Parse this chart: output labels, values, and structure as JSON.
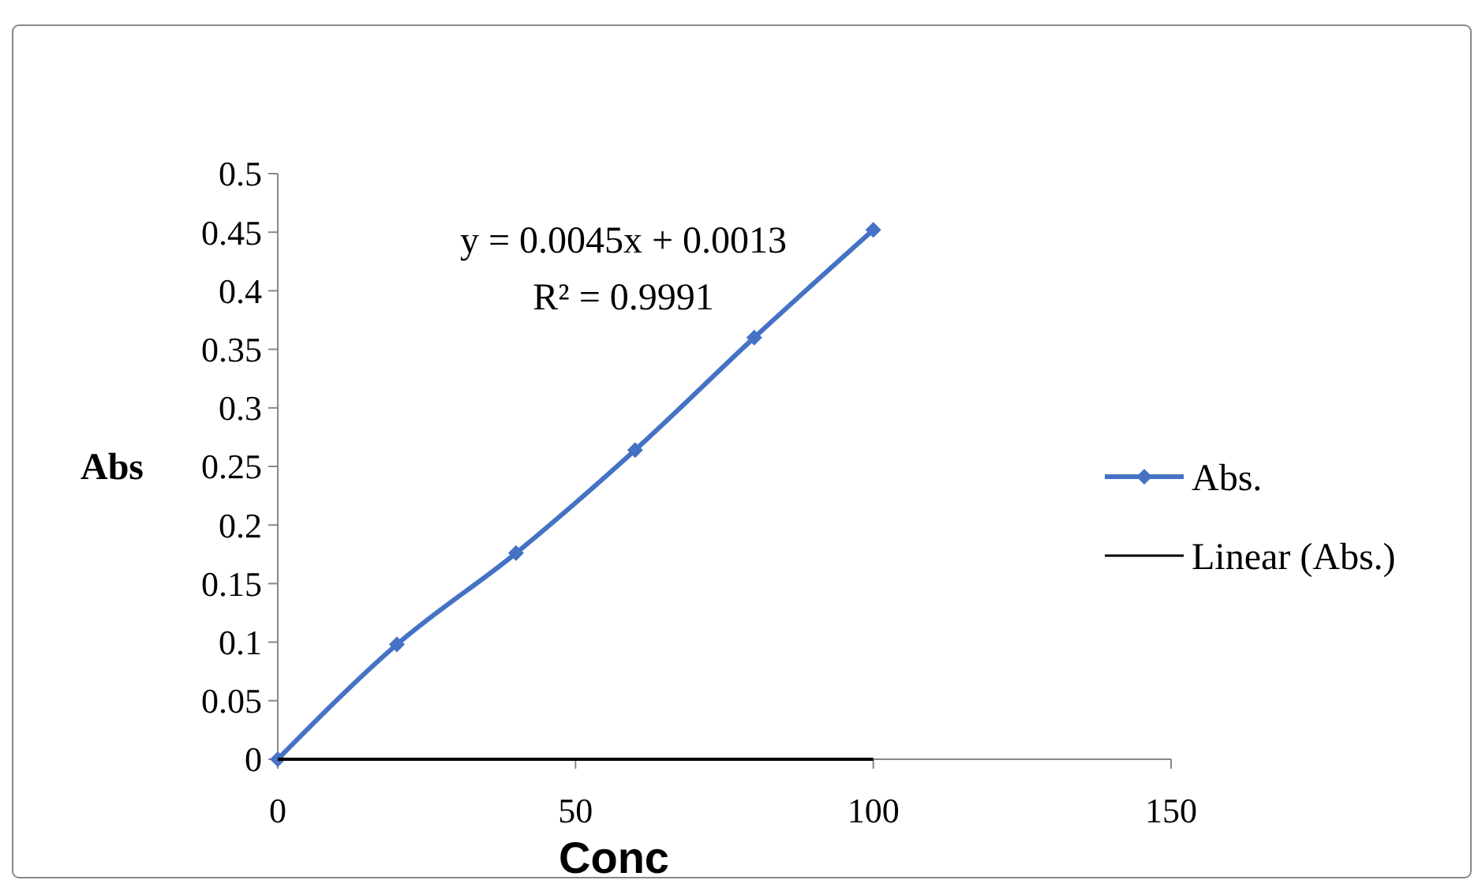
{
  "chart_data": {
    "type": "line",
    "xlabel": "Conc",
    "ylabel": "Abs",
    "xlim": [
      0,
      150
    ],
    "xticks": [
      0,
      50,
      100,
      150
    ],
    "ylim": [
      0,
      0.5
    ],
    "yticks": [
      0,
      0.05,
      0.1,
      0.15,
      0.2,
      0.25,
      0.3,
      0.35,
      0.4,
      0.45,
      0.5
    ],
    "grid": false,
    "legend": "right",
    "annotations": [
      "y = 0.0045x + 0.0013",
      "R² = 0.9991"
    ],
    "series": [
      {
        "name": "Abs.",
        "color": "#4472c4",
        "marker": "diamond",
        "x": [
          0,
          20,
          40,
          60,
          80,
          100
        ],
        "values": [
          0,
          0.098,
          0.176,
          0.264,
          0.36,
          0.452
        ]
      },
      {
        "name": "Linear (Abs.)",
        "color": "#000000",
        "marker": "none",
        "x": [
          0,
          100
        ],
        "values": [
          0,
          0
        ]
      }
    ]
  }
}
